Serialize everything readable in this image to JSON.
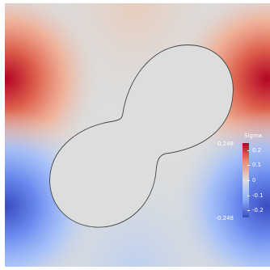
{
  "colorbar": {
    "title": "Sigma",
    "range_max_label": "0.248",
    "range_min_label": "-0.248",
    "ticks": [
      {
        "label": "0.2",
        "value": 0.2
      },
      {
        "label": "0.1",
        "value": 0.1
      },
      {
        "label": "0",
        "value": 0
      },
      {
        "label": "-0.1",
        "value": -0.1
      },
      {
        "label": "-0.2",
        "value": -0.2
      }
    ],
    "range": [
      -0.248,
      0.248
    ],
    "colors": {
      "high": "#b40426",
      "mid": "#dddddd",
      "low": "#3b4cc0"
    }
  },
  "field": {
    "background": "#dcdddd",
    "shape_fill": "#dcdddd",
    "shape_outline": "#444444"
  }
}
